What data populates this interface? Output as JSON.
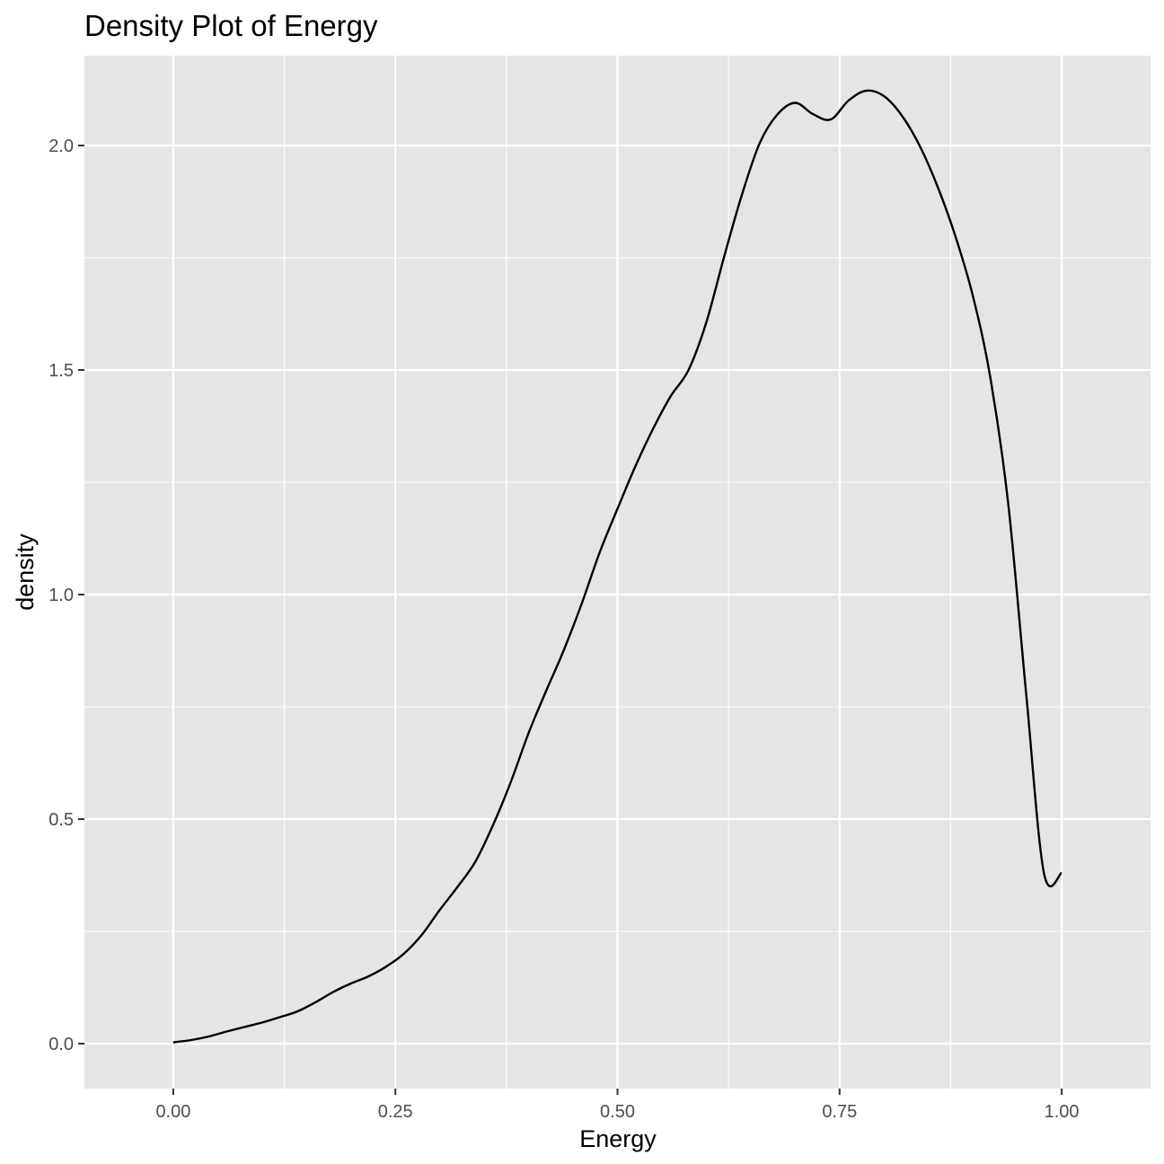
{
  "chart_data": {
    "type": "line",
    "title": "Density Plot of Energy",
    "xlabel": "Energy",
    "ylabel": "density",
    "xlim": [
      -0.1,
      1.1
    ],
    "ylim": [
      -0.1,
      2.2
    ],
    "x_ticks": [
      0,
      0.25,
      0.5,
      0.75,
      1
    ],
    "x_tick_labels": [
      "0.00",
      "0.25",
      "0.50",
      "0.75",
      "1.00"
    ],
    "y_ticks": [
      0,
      0.5,
      1,
      1.5,
      2
    ],
    "y_tick_labels": [
      "0.0",
      "0.5",
      "1.0",
      "1.5",
      "2.0"
    ],
    "grid": true,
    "colors": {
      "panel": "#e5e5e5",
      "grid": "#ffffff",
      "line": "#000000",
      "tick_text": "#4d4d4d"
    },
    "series": [
      {
        "x": [
          0.0,
          0.02,
          0.04,
          0.06,
          0.08,
          0.1,
          0.12,
          0.14,
          0.16,
          0.18,
          0.2,
          0.22,
          0.24,
          0.26,
          0.28,
          0.3,
          0.32,
          0.34,
          0.36,
          0.38,
          0.4,
          0.42,
          0.44,
          0.46,
          0.48,
          0.5,
          0.52,
          0.54,
          0.56,
          0.58,
          0.6,
          0.62,
          0.64,
          0.66,
          0.68,
          0.7,
          0.72,
          0.74,
          0.76,
          0.78,
          0.8,
          0.82,
          0.84,
          0.86,
          0.88,
          0.9,
          0.92,
          0.94,
          0.96,
          0.98,
          1.0
        ],
        "y": [
          0.003,
          0.008,
          0.016,
          0.027,
          0.037,
          0.047,
          0.059,
          0.072,
          0.092,
          0.115,
          0.134,
          0.15,
          0.172,
          0.201,
          0.243,
          0.298,
          0.349,
          0.405,
          0.487,
          0.583,
          0.692,
          0.787,
          0.878,
          0.981,
          1.094,
          1.191,
          1.285,
          1.369,
          1.442,
          1.5,
          1.606,
          1.752,
          1.89,
          2.005,
          2.069,
          2.095,
          2.07,
          2.058,
          2.1,
          2.122,
          2.11,
          2.067,
          2.0,
          1.91,
          1.8,
          1.665,
          1.48,
          1.2,
          0.78,
          0.38,
          0.38
        ]
      }
    ]
  }
}
